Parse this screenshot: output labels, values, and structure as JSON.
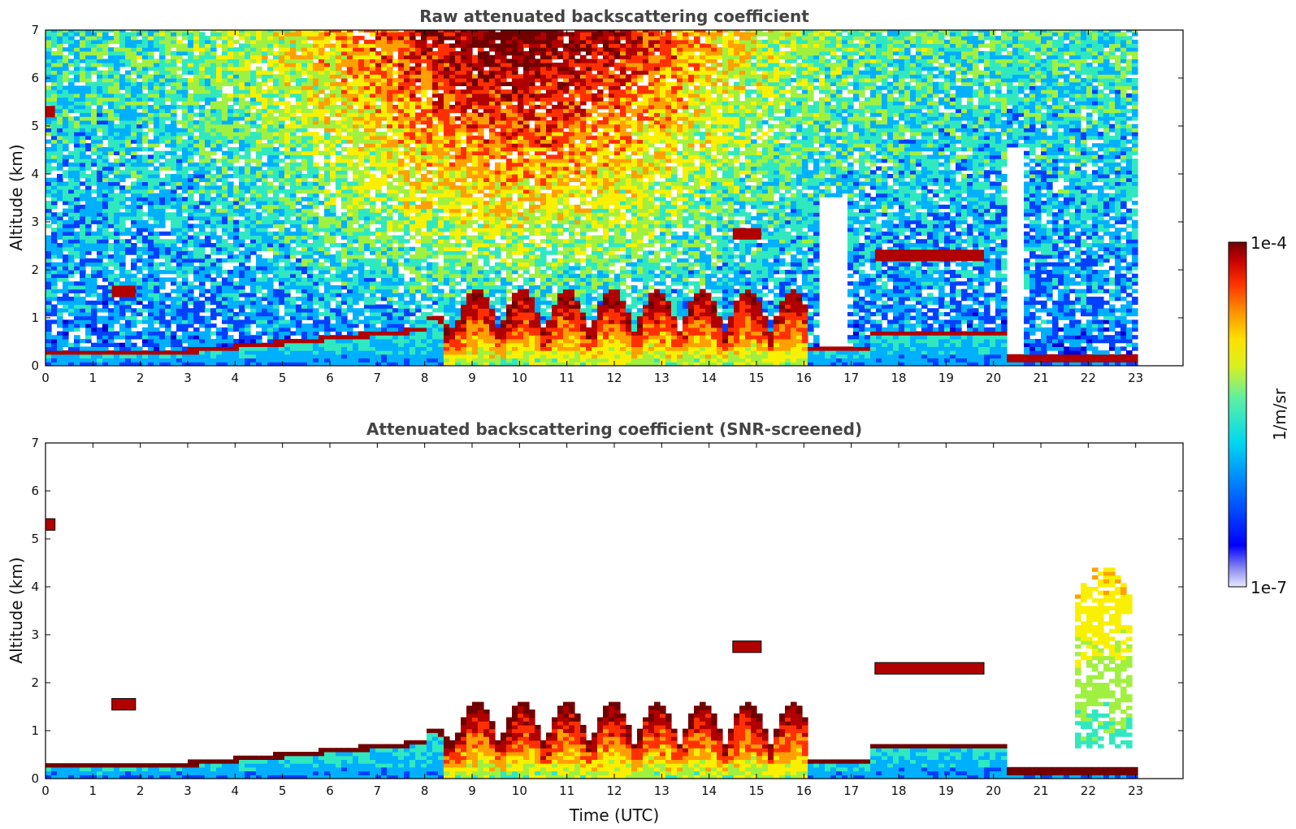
{
  "chart_data": [
    {
      "type": "heatmap",
      "title": "Raw attenuated backscattering coefficient",
      "xlabel": "",
      "ylabel": "Altitude (km)",
      "xlim": [
        0,
        24
      ],
      "ylim": [
        0,
        7
      ],
      "x_ticks": [
        "0",
        "1",
        "2",
        "3",
        "4",
        "5",
        "6",
        "7",
        "8",
        "9",
        "10",
        "11",
        "12",
        "13",
        "14",
        "15",
        "16",
        "17",
        "18",
        "19",
        "20",
        "21",
        "22",
        "23"
      ],
      "y_ticks": [
        "0",
        "1",
        "2",
        "3",
        "4",
        "5",
        "6",
        "7"
      ],
      "data_end_time": 23,
      "colorbar": {
        "min_label": "1e-7",
        "max_label": "1e-4",
        "label": "1/m/sr",
        "scale": "log"
      },
      "features": [
        {
          "kind": "boundary_layer",
          "from": 0,
          "to": 23
        },
        {
          "kind": "cloud_layer",
          "t0": 1.4,
          "t1": 1.9,
          "z": 1.55
        },
        {
          "kind": "cloud_layer",
          "t0": 14.5,
          "t1": 15.1,
          "z": 2.75
        },
        {
          "kind": "cloud_layer",
          "t0": 17.5,
          "t1": 19.8,
          "z": 2.3
        },
        {
          "kind": "cloud_layer",
          "t0": 0.0,
          "t1": 0.2,
          "z": 5.3
        }
      ]
    },
    {
      "type": "heatmap",
      "title": "Attenuated backscattering coefficient (SNR-screened)",
      "xlabel": "Time (UTC)",
      "ylabel": "Altitude (km)",
      "xlim": [
        0,
        24
      ],
      "ylim": [
        0,
        7
      ],
      "x_ticks": [
        "0",
        "1",
        "2",
        "3",
        "4",
        "5",
        "6",
        "7",
        "8",
        "9",
        "10",
        "11",
        "12",
        "13",
        "14",
        "15",
        "16",
        "17",
        "18",
        "19",
        "20",
        "21",
        "22",
        "23"
      ],
      "y_ticks": [
        "0",
        "1",
        "2",
        "3",
        "4",
        "5",
        "6",
        "7"
      ],
      "data_end_time": 23,
      "colorbar": {
        "min_label": "1e-7",
        "max_label": "1e-4",
        "label": "1/m/sr",
        "scale": "log"
      }
    }
  ],
  "colormap": [
    "#0000d0",
    "#0040ff",
    "#00b0ff",
    "#30e8c0",
    "#a0f040",
    "#f8f000",
    "#ffa000",
    "#ff3000",
    "#b00000",
    "#700000"
  ],
  "colorbar": {
    "max_label": "1e-4",
    "min_label": "1e-7",
    "label": "1/m/sr"
  }
}
